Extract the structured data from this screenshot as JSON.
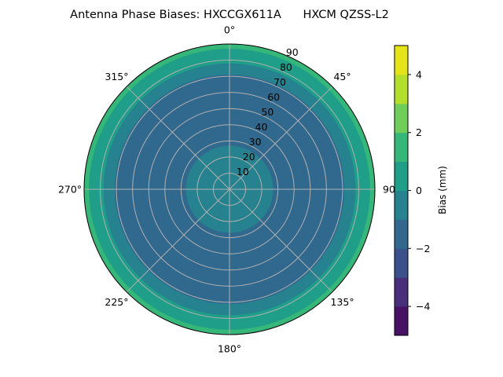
{
  "chart_data": {
    "type": "polar-contour",
    "title": "Antenna Phase Biases: HXCCGX611A      HXCM QZSS-L2",
    "angular_ticks": [
      "0°",
      "45°",
      "90",
      "135°",
      "180°",
      "225°",
      "270°",
      "315°"
    ],
    "angular_tick_values": [
      0,
      45,
      90,
      135,
      180,
      225,
      270,
      315
    ],
    "radial_ticks": [
      "10",
      "20",
      "30",
      "40",
      "50",
      "60",
      "70",
      "80",
      "90"
    ],
    "radial_tick_values": [
      10,
      20,
      30,
      40,
      50,
      60,
      70,
      80,
      90
    ],
    "radial_range": [
      0,
      90
    ],
    "grid": true,
    "colorbar": {
      "label": "Bias (mm)",
      "range": [
        -5,
        5
      ],
      "levels": [
        -5,
        -4,
        -3,
        -2,
        -1,
        0,
        1,
        2,
        3,
        4,
        5
      ],
      "tick_labels": [
        "4",
        "2",
        "0",
        "−2",
        "−4"
      ],
      "tick_values": [
        4,
        2,
        0,
        -2,
        -4
      ],
      "colormap": "viridis",
      "colors": [
        "#471164",
        "#482f7c",
        "#3b518b",
        "#31688e",
        "#26828e",
        "#1f9e89",
        "#35b779",
        "#6ece58",
        "#b5de2b",
        "#e5e419"
      ]
    },
    "bands": [
      {
        "range": [
          1,
          2
        ],
        "zenith_from": 87,
        "zenith_to": 90
      },
      {
        "range": [
          0,
          1
        ],
        "zenith_from": 78,
        "zenith_to": 87
      },
      {
        "range": [
          -1,
          0
        ],
        "zenith_from": 71,
        "zenith_to": 78
      },
      {
        "range": [
          -2,
          -1
        ],
        "zenith_from": 27,
        "zenith_to": 71
      },
      {
        "range": [
          -1,
          0
        ],
        "zenith_from": 0,
        "zenith_to": 27
      }
    ]
  }
}
